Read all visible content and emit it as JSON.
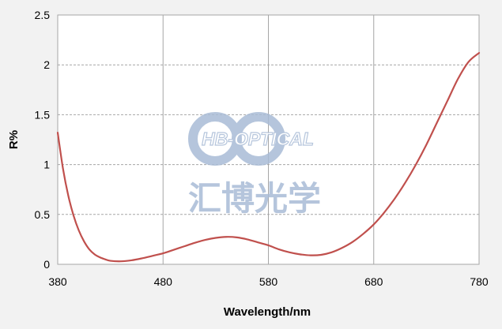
{
  "watermark": {
    "latin_text": "HB-OPTICAL",
    "cjk_text": "汇博光学"
  },
  "colors": {
    "background": "#f2f2f2",
    "plot_background": "#ffffff",
    "curve": "#c0504d",
    "grid": "#a6a6a6",
    "watermark": "#a9bcd6"
  },
  "chart_data": {
    "type": "line",
    "title": "",
    "xlabel": "Wavelength/nm",
    "ylabel": "R%",
    "xlim": [
      380,
      780
    ],
    "ylim": [
      0,
      2.5
    ],
    "x_ticks": [
      "380",
      "480",
      "580",
      "680",
      "780"
    ],
    "y_ticks": [
      "0",
      "0.5",
      "1",
      "1.5",
      "2",
      "2.5"
    ],
    "grid": true,
    "legend": "none",
    "series": [
      {
        "name": "",
        "x": [
          380,
          385,
          390,
          395,
          400,
          405,
          410,
          415,
          420,
          425,
          430,
          440,
          450,
          460,
          470,
          480,
          490,
          500,
          510,
          520,
          530,
          540,
          550,
          560,
          570,
          580,
          590,
          600,
          610,
          620,
          630,
          640,
          650,
          660,
          670,
          680,
          690,
          700,
          710,
          720,
          730,
          740,
          750,
          760,
          770,
          780
        ],
        "y": [
          1.32,
          0.96,
          0.69,
          0.49,
          0.34,
          0.23,
          0.15,
          0.1,
          0.07,
          0.05,
          0.035,
          0.03,
          0.04,
          0.06,
          0.085,
          0.11,
          0.145,
          0.18,
          0.215,
          0.245,
          0.265,
          0.275,
          0.27,
          0.25,
          0.22,
          0.19,
          0.15,
          0.12,
          0.1,
          0.09,
          0.095,
          0.12,
          0.165,
          0.225,
          0.305,
          0.4,
          0.52,
          0.66,
          0.82,
          1.0,
          1.2,
          1.42,
          1.64,
          1.86,
          2.03,
          2.12
        ]
      }
    ]
  }
}
